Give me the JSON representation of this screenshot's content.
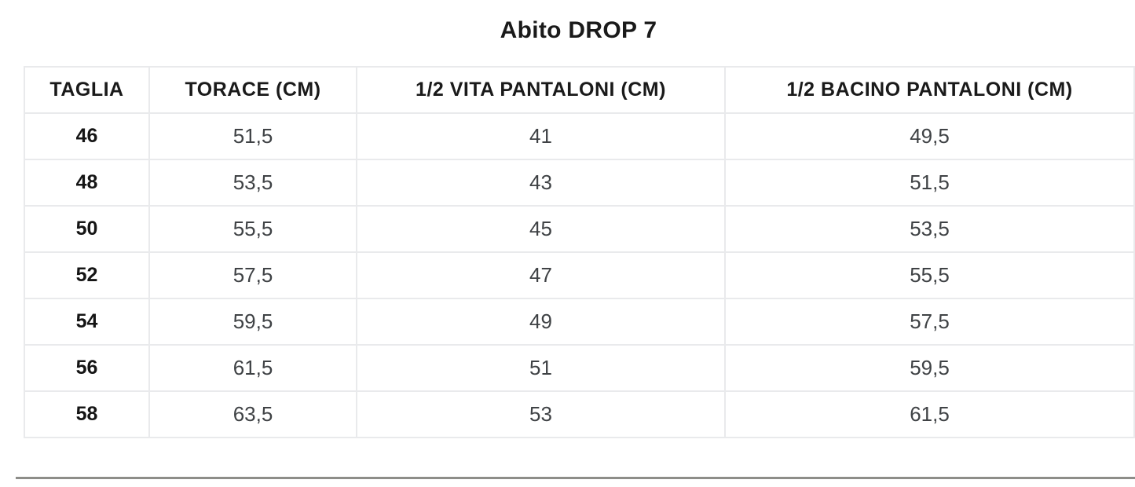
{
  "title": "Abito DROP 7",
  "chart_data": {
    "type": "table",
    "title": "Abito DROP 7",
    "columns": [
      "TAGLIA",
      "TORACE (CM)",
      "1/2 VITA PANTALONI (CM)",
      "1/2 BACINO PANTALONI (CM)"
    ],
    "rows": [
      [
        "46",
        "51,5",
        "41",
        "49,5"
      ],
      [
        "48",
        "53,5",
        "43",
        "51,5"
      ],
      [
        "50",
        "55,5",
        "45",
        "53,5"
      ],
      [
        "52",
        "57,5",
        "47",
        "55,5"
      ],
      [
        "54",
        "59,5",
        "49",
        "57,5"
      ],
      [
        "56",
        "61,5",
        "51",
        "59,5"
      ],
      [
        "58",
        "63,5",
        "53",
        "61,5"
      ]
    ]
  },
  "colors": {
    "background": "#ffffff",
    "table_border": "#e9eaec",
    "header_text": "#1a1a1a",
    "cell_text": "#3f4245",
    "size_text": "#151515",
    "divider": "#8d8d89"
  }
}
